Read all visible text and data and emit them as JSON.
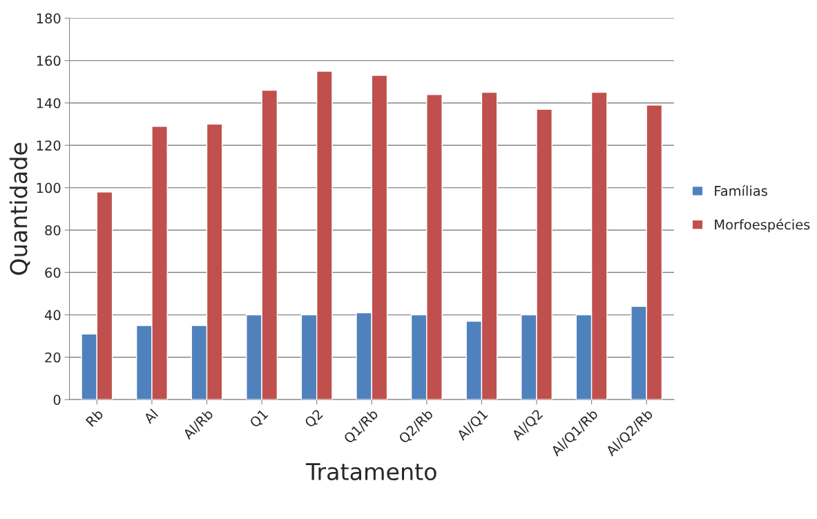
{
  "chart_data": {
    "type": "bar",
    "xlabel": "Tratamento",
    "ylabel": "Quantidade",
    "categories": [
      "Rb",
      "Al",
      "Al/Rb",
      "Q1",
      "Q2",
      "Q1/Rb",
      "Q2/Rb",
      "Al/Q1",
      "Al/Q2",
      "Al/Q1/Rb",
      "Al/Q2/Rb"
    ],
    "series": [
      {
        "name": "Famílias",
        "color": "#4f81bd",
        "values": [
          31,
          35,
          35,
          40,
          40,
          41,
          40,
          37,
          40,
          40,
          44
        ]
      },
      {
        "name": "Morfoespécies",
        "color": "#c0504d",
        "values": [
          98,
          129,
          130,
          146,
          155,
          153,
          144,
          145,
          137,
          145,
          139
        ]
      }
    ],
    "ylim": [
      0,
      180
    ],
    "yticks": [
      0,
      20,
      40,
      60,
      80,
      100,
      120,
      140,
      160,
      180
    ],
    "grid": "y",
    "legend": "right"
  }
}
